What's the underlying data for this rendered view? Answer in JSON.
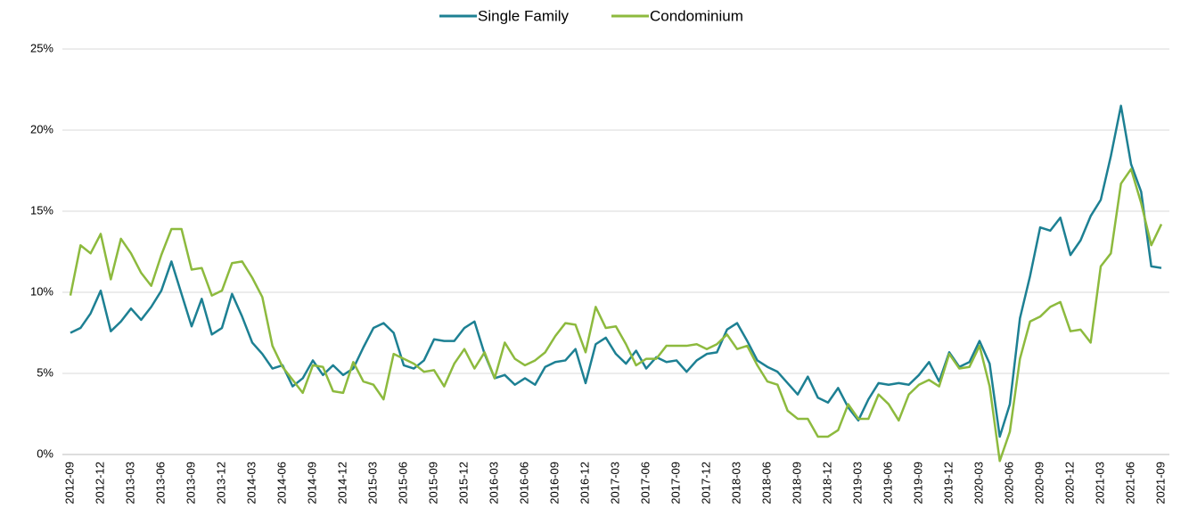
{
  "chart_data": {
    "type": "line",
    "categories": [
      "2012-09",
      null,
      null,
      "2012-12",
      null,
      null,
      "2013-03",
      null,
      null,
      "2013-06",
      null,
      null,
      "2013-09",
      null,
      null,
      "2013-12",
      null,
      null,
      "2014-03",
      null,
      null,
      "2014-06",
      null,
      null,
      "2014-09",
      null,
      null,
      "2014-12",
      null,
      null,
      "2015-03",
      null,
      null,
      "2015-06",
      null,
      null,
      "2015-09",
      null,
      null,
      "2015-12",
      null,
      null,
      "2016-03",
      null,
      null,
      "2016-06",
      null,
      null,
      "2016-09",
      null,
      null,
      "2016-12",
      null,
      null,
      "2017-03",
      null,
      null,
      "2017-06",
      null,
      null,
      "2017-09",
      null,
      null,
      "2017-12",
      null,
      null,
      "2018-03",
      null,
      null,
      "2018-06",
      null,
      null,
      "2018-09",
      null,
      null,
      "2018-12",
      null,
      null,
      "2019-03",
      null,
      null,
      "2019-06",
      null,
      null,
      "2019-09",
      null,
      null,
      "2019-12",
      null,
      null,
      "2020-03",
      null,
      null,
      "2020-06",
      null,
      null,
      "2020-09",
      null,
      null,
      "2020-12",
      null,
      null,
      "2021-03",
      null,
      null,
      "2021-06",
      null,
      null,
      "2021-09"
    ],
    "series": [
      {
        "name": "Single Family",
        "color": "#1d8093",
        "values": [
          7.5,
          7.8,
          8.7,
          10.1,
          7.6,
          8.2,
          9.0,
          8.3,
          9.1,
          10.1,
          11.9,
          9.9,
          7.9,
          9.6,
          7.4,
          7.8,
          9.9,
          8.5,
          6.9,
          6.2,
          5.3,
          5.5,
          4.2,
          4.7,
          5.8,
          4.9,
          5.5,
          4.9,
          5.3,
          6.6,
          7.8,
          8.1,
          7.5,
          5.5,
          5.3,
          5.8,
          7.1,
          7.0,
          7.0,
          7.8,
          8.2,
          6.2,
          4.7,
          4.9,
          4.3,
          4.7,
          4.3,
          5.4,
          5.7,
          5.8,
          6.5,
          4.4,
          6.8,
          7.2,
          6.2,
          5.6,
          6.4,
          5.3,
          6.0,
          5.7,
          5.8,
          5.1,
          5.8,
          6.2,
          6.3,
          7.7,
          8.1,
          7.0,
          5.8,
          5.4,
          5.1,
          4.4,
          3.7,
          4.8,
          3.5,
          3.2,
          4.1,
          2.9,
          2.1,
          3.4,
          4.4,
          4.3,
          4.4,
          4.3,
          4.9,
          5.7,
          4.5,
          6.3,
          5.4,
          5.7,
          7.0,
          5.6,
          1.1,
          3.1,
          8.4,
          11.0,
          14.0,
          13.8,
          14.6,
          12.3,
          13.2,
          14.7,
          15.7,
          18.4,
          21.5,
          17.9,
          16.2,
          11.6,
          11.5
        ]
      },
      {
        "name": "Condominium",
        "color": "#8dba3e",
        "values": [
          9.8,
          12.9,
          12.4,
          13.6,
          10.8,
          13.3,
          12.4,
          11.2,
          10.4,
          12.3,
          13.9,
          13.9,
          11.4,
          11.5,
          9.8,
          10.1,
          11.8,
          11.9,
          10.9,
          9.7,
          6.7,
          5.4,
          4.6,
          3.8,
          5.5,
          5.4,
          3.9,
          3.8,
          5.7,
          4.5,
          4.3,
          3.4,
          6.2,
          5.9,
          5.6,
          5.1,
          5.2,
          4.2,
          5.6,
          6.5,
          5.3,
          6.3,
          4.7,
          6.9,
          5.9,
          5.5,
          5.8,
          6.3,
          7.3,
          8.1,
          8.0,
          6.3,
          9.1,
          7.8,
          7.9,
          6.8,
          5.5,
          5.9,
          5.9,
          6.7,
          6.7,
          6.7,
          6.8,
          6.5,
          6.8,
          7.4,
          6.5,
          6.7,
          5.5,
          4.5,
          4.3,
          2.7,
          2.2,
          2.2,
          1.1,
          1.1,
          1.5,
          3.1,
          2.2,
          2.2,
          3.7,
          3.1,
          2.1,
          3.7,
          4.3,
          4.6,
          4.2,
          6.2,
          5.3,
          5.4,
          6.7,
          4.2,
          -0.4,
          1.4,
          5.9,
          8.2,
          8.5,
          9.1,
          9.4,
          7.6,
          7.7,
          6.9,
          11.6,
          12.4,
          16.7,
          17.6,
          15.5,
          12.9,
          14.2
        ]
      }
    ],
    "ylim": [
      0,
      25
    ],
    "yticks": [
      {
        "value": 0,
        "label": "0%"
      },
      {
        "value": 5,
        "label": "5%"
      },
      {
        "value": 10,
        "label": "10%"
      },
      {
        "value": 15,
        "label": "15%"
      },
      {
        "value": 20,
        "label": "20%"
      },
      {
        "value": 25,
        "label": "25%"
      }
    ],
    "grid": true,
    "legend": "top"
  }
}
